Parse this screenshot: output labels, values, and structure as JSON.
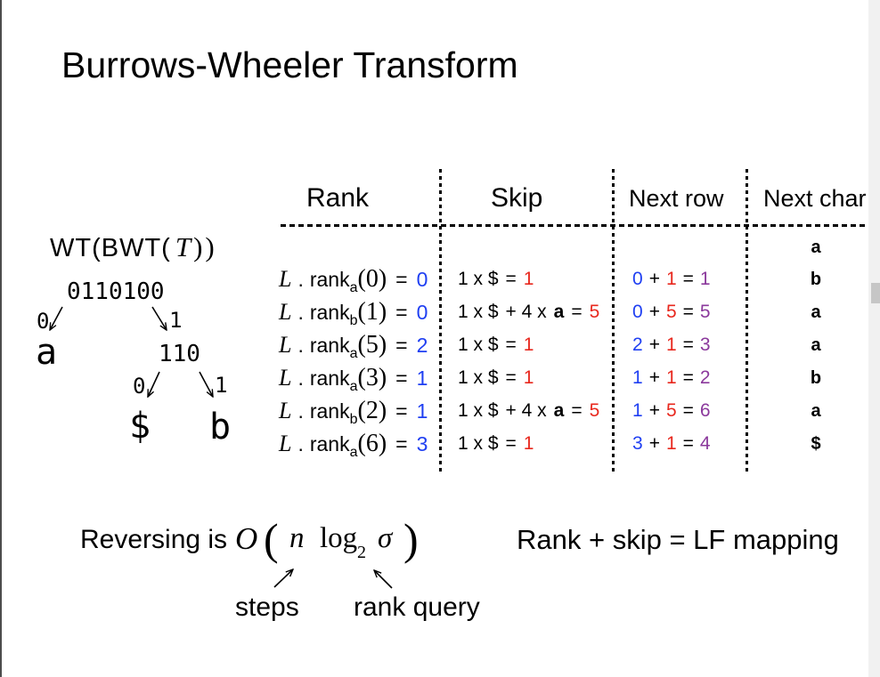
{
  "title": "Burrows-Wheeler Transform",
  "colors": {
    "rank_value": "#1f3ff2",
    "skip_value": "#e8281e",
    "next_row_value": "#8b399c"
  },
  "tree": {
    "caption": {
      "prefix": "WT(BWT(",
      "var": "T",
      "suffix": "))"
    },
    "root": {
      "bits": "0110100",
      "left_edge": "0",
      "right_edge": "1"
    },
    "left_leaf": "a",
    "inner": {
      "bits": "110",
      "left_edge": "0",
      "right_edge": "1"
    },
    "inner_left_leaf": "$",
    "inner_right_leaf": "b"
  },
  "table": {
    "headers": {
      "rank": "Rank",
      "skip": "Skip",
      "next_row": "Next row",
      "next_char": "Next char"
    },
    "initial_char": "a",
    "operators": {
      "seq": "L",
      "dot": ".",
      "fn": "rank",
      "equals": "=",
      "plus": "+"
    },
    "rows": [
      {
        "rank": {
          "char": "a",
          "arg": "(0)",
          "value": "0"
        },
        "skip": {
          "base": "1 x $",
          "value": "1"
        },
        "next_row": {
          "row": "0",
          "skip": "1",
          "result": "1"
        },
        "next_char": "b"
      },
      {
        "rank": {
          "char": "b",
          "arg": "(1)",
          "value": "0"
        },
        "skip": {
          "base": "1 x $",
          "extra": "+ 4 x",
          "extra_char": "a",
          "value": "5"
        },
        "next_row": {
          "row": "0",
          "skip": "5",
          "result": "5"
        },
        "next_char": "a"
      },
      {
        "rank": {
          "char": "a",
          "arg": "(5)",
          "value": "2"
        },
        "skip": {
          "base": "1 x $",
          "value": "1"
        },
        "next_row": {
          "row": "2",
          "skip": "1",
          "result": "3"
        },
        "next_char": "a"
      },
      {
        "rank": {
          "char": "a",
          "arg": "(3)",
          "value": "1"
        },
        "skip": {
          "base": "1 x $",
          "value": "1"
        },
        "next_row": {
          "row": "1",
          "skip": "1",
          "result": "2"
        },
        "next_char": "b"
      },
      {
        "rank": {
          "char": "b",
          "arg": "(2)",
          "value": "1"
        },
        "skip": {
          "base": "1 x $",
          "extra": "+ 4 x",
          "extra_char": "a",
          "value": "5"
        },
        "next_row": {
          "row": "1",
          "skip": "5",
          "result": "6"
        },
        "next_char": "a"
      },
      {
        "rank": {
          "char": "a",
          "arg": "(6)",
          "value": "3"
        },
        "skip": {
          "base": "1 x $",
          "value": "1"
        },
        "next_row": {
          "row": "3",
          "skip": "1",
          "result": "4"
        },
        "next_char": "$"
      }
    ]
  },
  "footer": {
    "reversing": {
      "label": "Reversing is",
      "big_o": "O",
      "open": "(",
      "n": "n",
      "log": "log",
      "base": "2",
      "sigma": "σ",
      "close": ")"
    },
    "steps_note": "steps",
    "rank_note": "rank query",
    "lf_note": "Rank + skip = LF mapping"
  }
}
